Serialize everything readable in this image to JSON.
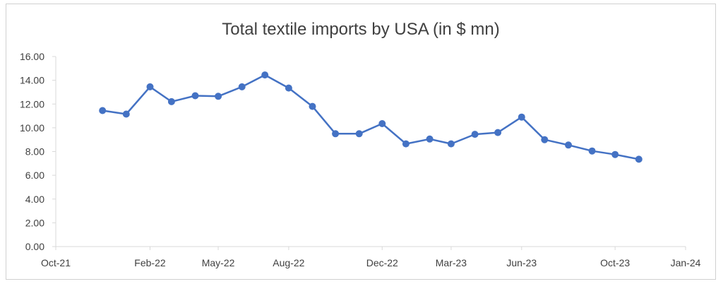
{
  "chart_data": {
    "type": "line",
    "title": "Total textile imports by USA (in $ mn)",
    "xlabel": "",
    "ylabel": "",
    "ylim": [
      0,
      16
    ],
    "y_ticks": [
      "0.00",
      "2.00",
      "4.00",
      "6.00",
      "8.00",
      "10.00",
      "12.00",
      "14.00",
      "16.00"
    ],
    "x_range": [
      "2021-10-01",
      "2024-01-01"
    ],
    "x_ticks": [
      {
        "date": "2021-10-01",
        "label": "Oct-21"
      },
      {
        "date": "2022-02-01",
        "label": "Feb-22"
      },
      {
        "date": "2022-05-01",
        "label": "May-22"
      },
      {
        "date": "2022-08-01",
        "label": "Aug-22"
      },
      {
        "date": "2022-12-01",
        "label": "Dec-22"
      },
      {
        "date": "2023-03-01",
        "label": "Mar-23"
      },
      {
        "date": "2023-06-01",
        "label": "Jun-23"
      },
      {
        "date": "2023-10-01",
        "label": "Oct-23"
      },
      {
        "date": "2024-01-01",
        "label": "Jan-24"
      }
    ],
    "grid": false,
    "legend": "none",
    "series": [
      {
        "color": "#4472c4",
        "points": [
          {
            "x": "2021-12-01",
            "y": 11.45
          },
          {
            "x": "2022-01-01",
            "y": 11.15
          },
          {
            "x": "2022-02-01",
            "y": 13.45
          },
          {
            "x": "2022-03-01",
            "y": 12.2
          },
          {
            "x": "2022-04-01",
            "y": 12.7
          },
          {
            "x": "2022-05-01",
            "y": 12.65
          },
          {
            "x": "2022-06-01",
            "y": 13.45
          },
          {
            "x": "2022-07-01",
            "y": 14.45
          },
          {
            "x": "2022-08-01",
            "y": 13.35
          },
          {
            "x": "2022-09-01",
            "y": 11.8
          },
          {
            "x": "2022-10-01",
            "y": 9.5
          },
          {
            "x": "2022-11-01",
            "y": 9.5
          },
          {
            "x": "2022-12-01",
            "y": 10.35
          },
          {
            "x": "2023-01-01",
            "y": 8.65
          },
          {
            "x": "2023-02-01",
            "y": 9.05
          },
          {
            "x": "2023-03-01",
            "y": 8.65
          },
          {
            "x": "2023-04-01",
            "y": 9.45
          },
          {
            "x": "2023-05-01",
            "y": 9.6
          },
          {
            "x": "2023-06-01",
            "y": 10.9
          },
          {
            "x": "2023-07-01",
            "y": 9.0
          },
          {
            "x": "2023-08-01",
            "y": 8.55
          },
          {
            "x": "2023-09-01",
            "y": 8.05
          },
          {
            "x": "2023-10-01",
            "y": 7.75
          },
          {
            "x": "2023-11-01",
            "y": 7.35
          }
        ]
      }
    ]
  }
}
